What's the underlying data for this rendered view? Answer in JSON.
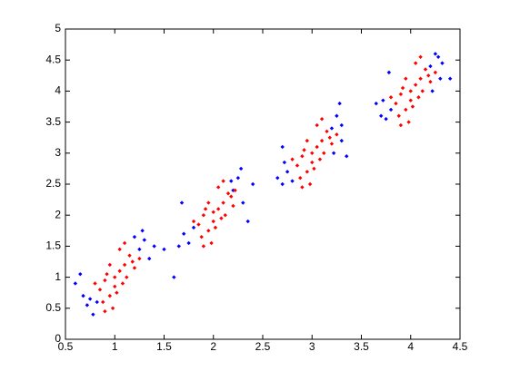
{
  "chart_data": {
    "type": "scatter",
    "xlim": [
      0.5,
      4.5
    ],
    "ylim": [
      0,
      5
    ],
    "xticks": [
      0.5,
      1,
      1.5,
      2,
      2.5,
      3,
      3.5,
      4,
      4.5
    ],
    "yticks": [
      0,
      0.5,
      1,
      1.5,
      2,
      2.5,
      3,
      3.5,
      4,
      4.5,
      5
    ],
    "grid": false,
    "series": [
      {
        "color": "#0000ff",
        "x": [
          0.6,
          0.68,
          0.72,
          0.75,
          0.78,
          0.82,
          0.65,
          1.25,
          1.3,
          1.35,
          1.28,
          1.4,
          1.2,
          1.5,
          1.6,
          1.65,
          1.7,
          1.75,
          1.68,
          1.8,
          2.2,
          2.25,
          2.3,
          2.28,
          2.35,
          2.4,
          2.18,
          2.65,
          2.7,
          2.75,
          2.72,
          2.8,
          2.7,
          3.2,
          3.25,
          3.3,
          3.28,
          3.35,
          3.22,
          3.3,
          3.65,
          3.7,
          3.75,
          3.8,
          3.72,
          3.78,
          4.2,
          4.25,
          4.3,
          4.28,
          4.4,
          4.22,
          4.32
        ],
        "values": [
          0.9,
          0.7,
          0.55,
          0.65,
          0.4,
          0.6,
          1.05,
          1.45,
          1.6,
          1.3,
          1.75,
          1.5,
          1.65,
          1.45,
          1.0,
          1.5,
          1.7,
          1.55,
          2.2,
          1.8,
          2.4,
          2.6,
          2.2,
          2.75,
          1.9,
          2.5,
          2.55,
          2.6,
          2.5,
          2.7,
          2.85,
          2.55,
          3.1,
          3.4,
          3.6,
          3.2,
          3.8,
          2.95,
          3.0,
          3.45,
          3.8,
          3.6,
          3.55,
          3.7,
          3.85,
          4.3,
          4.4,
          4.6,
          4.2,
          4.55,
          4.2,
          4.0,
          4.45
        ]
      },
      {
        "color": "#ff0000",
        "x": [
          0.85,
          0.9,
          0.95,
          1.0,
          1.05,
          1.1,
          1.0,
          0.92,
          1.12,
          1.15,
          1.2,
          0.88,
          1.05,
          0.98,
          1.08,
          1.18,
          0.95,
          1.02,
          1.25,
          0.8,
          1.1,
          0.9,
          1.85,
          1.9,
          1.95,
          2.0,
          2.05,
          2.1,
          2.0,
          1.92,
          2.12,
          2.15,
          2.2,
          1.88,
          2.05,
          1.98,
          2.08,
          2.18,
          1.95,
          2.02,
          2.22,
          1.8,
          2.1,
          1.9,
          2.85,
          2.9,
          2.95,
          3.0,
          3.05,
          3.1,
          3.0,
          2.92,
          3.12,
          3.15,
          3.2,
          2.88,
          3.05,
          2.98,
          3.08,
          3.18,
          2.95,
          3.02,
          3.25,
          2.8,
          3.1,
          2.9,
          3.85,
          3.9,
          3.95,
          4.0,
          4.05,
          4.1,
          4.0,
          3.92,
          4.12,
          4.15,
          4.2,
          3.88,
          4.05,
          3.98,
          4.08,
          4.18,
          3.95,
          4.02,
          4.25,
          3.8,
          4.1,
          3.9
        ],
        "values": [
          0.8,
          0.95,
          0.7,
          1.0,
          1.1,
          1.2,
          0.85,
          1.05,
          1.0,
          1.35,
          1.15,
          0.6,
          1.45,
          0.5,
          0.9,
          1.25,
          1.2,
          0.75,
          1.3,
          0.9,
          1.55,
          0.45,
          1.85,
          2.0,
          1.75,
          2.05,
          2.1,
          2.2,
          1.9,
          2.1,
          2.0,
          2.35,
          2.15,
          1.65,
          2.45,
          1.55,
          1.95,
          2.3,
          2.2,
          1.8,
          2.4,
          1.9,
          2.55,
          1.5,
          2.8,
          2.95,
          2.7,
          3.0,
          3.1,
          3.2,
          2.85,
          3.05,
          3.0,
          3.35,
          3.15,
          2.6,
          3.45,
          2.5,
          2.9,
          3.25,
          3.2,
          2.75,
          3.3,
          2.9,
          3.55,
          2.45,
          3.8,
          3.95,
          3.7,
          4.0,
          4.1,
          4.2,
          3.85,
          4.05,
          4.0,
          4.35,
          4.15,
          3.6,
          4.45,
          3.5,
          3.9,
          4.25,
          4.2,
          3.75,
          4.3,
          3.9,
          4.55,
          3.45
        ]
      }
    ]
  }
}
